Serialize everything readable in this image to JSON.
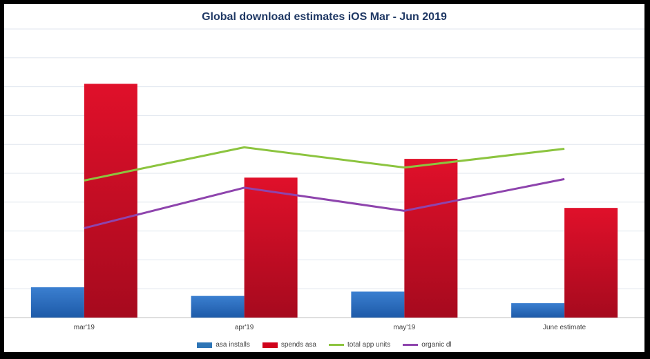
{
  "chart_data": {
    "type": "bar",
    "title": "Global download estimates iOS Mar - Jun 2019",
    "categories": [
      "mar'19",
      "apr'19",
      "may'19",
      "June estimate"
    ],
    "ylim": [
      0,
      100
    ],
    "grid": true,
    "legend_position": "bottom",
    "series": [
      {
        "name": "asa installs",
        "kind": "bar",
        "color": "#2E75B6",
        "values": [
          10.5,
          7.5,
          9,
          5
        ]
      },
      {
        "name": "spends asa",
        "kind": "bar",
        "color": "#D0021B",
        "values": [
          81,
          48.5,
          55,
          38
        ]
      },
      {
        "name": "total app units",
        "kind": "line",
        "color": "#8CC43F",
        "values": [
          47.5,
          59,
          52,
          58.5
        ]
      },
      {
        "name": "organic dl",
        "kind": "line",
        "color": "#8E44AD",
        "values": [
          31,
          45,
          37,
          48
        ]
      }
    ]
  }
}
